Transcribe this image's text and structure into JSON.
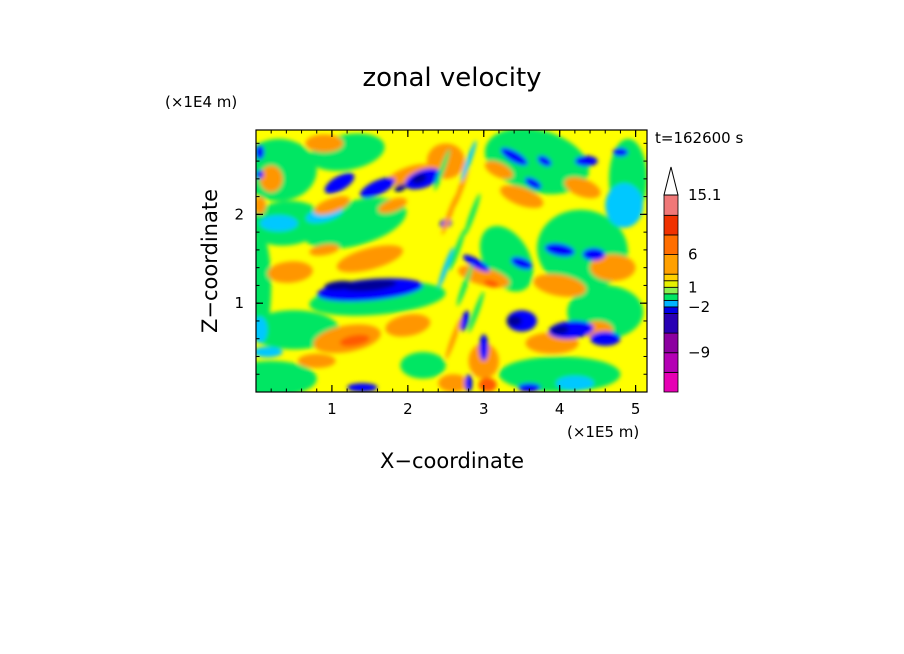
{
  "chart_data": {
    "type": "heatmap",
    "title": "zonal velocity",
    "xlabel": "X−coordinate",
    "ylabel": "Z−coordinate",
    "x_scale_label": "(×1E5 m)",
    "y_scale_label": "(×1E4 m)",
    "time_label": "t=162600 s",
    "xlim": [
      0,
      5.15
    ],
    "ylim": [
      0,
      2.95
    ],
    "x_ticks": [
      "1",
      "2",
      "3",
      "4",
      "5"
    ],
    "x_tick_values": [
      1,
      2,
      3,
      4,
      5
    ],
    "y_ticks": [
      "1",
      "2"
    ],
    "y_tick_values": [
      1,
      2
    ],
    "colorbar": {
      "labels": [
        "15.1",
        "6",
        "1",
        "−2",
        "−9"
      ],
      "label_values": [
        15.1,
        6,
        1,
        -2,
        -9
      ],
      "levels": [
        -15,
        -12,
        -9,
        -6,
        -3,
        -2,
        -1,
        0,
        1,
        2,
        3,
        6,
        9,
        12,
        15.1
      ],
      "colors": [
        "#e600b4",
        "#b400b4",
        "#8c00a0",
        "#2800b4",
        "#0000e6",
        "#00b4ff",
        "#00e664",
        "#8cf050",
        "#e6f000",
        "#ffd200",
        "#ffa000",
        "#ff6e00",
        "#f03200",
        "#f07878",
        "#ffc8c8"
      ],
      "extend": "max"
    },
    "colors": {
      "background": "#ffff00",
      "positive": "#ff9600",
      "weak": "#00e664",
      "negative": "#0000ff",
      "strong_negative": "#000096"
    }
  }
}
